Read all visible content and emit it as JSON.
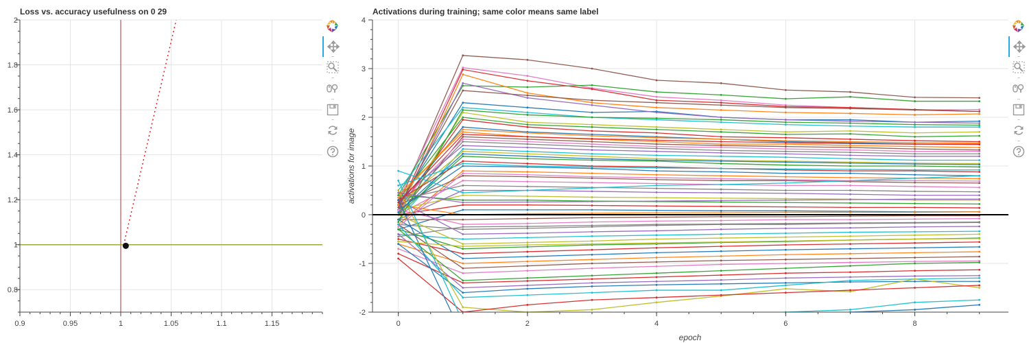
{
  "chart_data": [
    {
      "type": "line",
      "title": "Loss vs. accuracy usefulness on 0 29",
      "xlabel": "",
      "ylabel": "",
      "xlim": [
        0.9,
        1.2
      ],
      "ylim": [
        0.7,
        2.0
      ],
      "x_ticks": [
        0.9,
        0.95,
        1,
        1.05,
        1.1,
        1.15
      ],
      "x_tick_labels": [
        "0.9",
        "0.95",
        "1",
        "1.05",
        "1.1",
        "1.15"
      ],
      "y_ticks": [
        0.8,
        1,
        1.2,
        1.4,
        1.6,
        1.8,
        2
      ],
      "y_tick_labels": [
        "0.8",
        "1",
        "1.2",
        "1.4",
        "1.6",
        "1.8",
        "2"
      ],
      "grid": true,
      "series": [
        {
          "kind": "vline",
          "x": 1.0,
          "color": "#c0504d"
        },
        {
          "kind": "hline",
          "y": 1.0,
          "color": "#9aaa3c"
        },
        {
          "kind": "dotted",
          "x": [
            1.003,
            1.055
          ],
          "y": [
            1.0,
            2.0
          ],
          "color": "#e31a1c"
        },
        {
          "kind": "point",
          "x": 1.005,
          "y": 0.995,
          "color": "#111111"
        }
      ]
    },
    {
      "type": "line",
      "title": "Activations during training; same color means same label",
      "xlabel": "epoch",
      "ylabel": "activations for image",
      "xlim": [
        -0.4,
        9.45
      ],
      "ylim": [
        -2.0,
        4.0
      ],
      "x_ticks": [
        0,
        2,
        4,
        6,
        8
      ],
      "x_tick_labels": [
        "0",
        "2",
        "4",
        "6",
        "8"
      ],
      "y_ticks": [
        -2,
        -1,
        0,
        1,
        2,
        3,
        4
      ],
      "y_tick_labels": [
        "-2",
        "-1",
        "0",
        "1",
        "2",
        "3",
        "4"
      ],
      "grid": true,
      "zero_line": {
        "y": 0,
        "color": "#000000"
      },
      "epochs": [
        0,
        1,
        2,
        3,
        4,
        5,
        6,
        7,
        8,
        9
      ],
      "series_note": "",
      "series": [
        {
          "color": "#8c564b",
          "values": [
            0.2,
            3.27,
            3.18,
            3.0,
            2.76,
            2.7,
            2.56,
            2.52,
            2.41,
            2.4
          ]
        },
        {
          "color": "#e377c2",
          "values": [
            0.3,
            3.02,
            2.85,
            2.6,
            2.42,
            2.35,
            2.25,
            2.2,
            2.15,
            2.16
          ]
        },
        {
          "color": "#d62728",
          "values": [
            0.1,
            2.98,
            2.75,
            2.58,
            2.35,
            2.3,
            2.22,
            2.2,
            2.16,
            2.12
          ]
        },
        {
          "color": "#2ca02c",
          "values": [
            0.4,
            2.65,
            2.62,
            2.66,
            2.52,
            2.46,
            2.38,
            2.42,
            2.33,
            2.33
          ]
        },
        {
          "color": "#ff7f0e",
          "values": [
            0.0,
            2.88,
            2.5,
            2.3,
            2.2,
            2.15,
            2.1,
            2.08,
            2.05,
            2.07
          ]
        },
        {
          "color": "#1f77b4",
          "values": [
            0.2,
            2.3,
            2.2,
            2.1,
            2.12,
            2.0,
            1.95,
            1.95,
            1.9,
            1.92
          ]
        },
        {
          "color": "#9467bd",
          "values": [
            0.1,
            2.7,
            2.4,
            2.25,
            2.1,
            2.0,
            1.95,
            1.92,
            1.9,
            1.88
          ]
        },
        {
          "color": "#17becf",
          "values": [
            0.5,
            2.2,
            2.1,
            2.0,
            1.95,
            1.9,
            1.85,
            1.82,
            1.8,
            1.8
          ]
        },
        {
          "color": "#bcbd22",
          "values": [
            0.0,
            2.1,
            1.9,
            1.85,
            1.8,
            1.75,
            1.7,
            1.72,
            1.68,
            1.7
          ]
        },
        {
          "color": "#2ca02c",
          "values": [
            0.3,
            2.0,
            1.85,
            1.8,
            1.75,
            1.7,
            1.65,
            1.66,
            1.6,
            1.62
          ]
        },
        {
          "color": "#d62728",
          "values": [
            0.1,
            1.95,
            1.8,
            1.72,
            1.68,
            1.6,
            1.58,
            1.55,
            1.52,
            1.5
          ]
        },
        {
          "color": "#1f77b4",
          "values": [
            0.2,
            1.8,
            1.7,
            1.65,
            1.6,
            1.55,
            1.5,
            1.48,
            1.45,
            1.45
          ]
        },
        {
          "color": "#ff7f0e",
          "values": [
            0.4,
            1.7,
            1.6,
            1.55,
            1.5,
            1.45,
            1.45,
            1.42,
            1.4,
            1.38
          ]
        },
        {
          "color": "#8c564b",
          "values": [
            0.0,
            1.6,
            1.55,
            1.5,
            1.45,
            1.42,
            1.4,
            1.38,
            1.35,
            1.33
          ]
        },
        {
          "color": "#e377c2",
          "values": [
            0.2,
            1.55,
            1.5,
            1.45,
            1.4,
            1.38,
            1.35,
            1.33,
            1.3,
            1.3
          ]
        },
        {
          "color": "#7f7f7f",
          "values": [
            0.1,
            1.5,
            1.45,
            1.4,
            1.36,
            1.32,
            1.3,
            1.28,
            1.25,
            1.25
          ]
        },
        {
          "color": "#9467bd",
          "values": [
            0.3,
            1.42,
            1.38,
            1.33,
            1.3,
            1.27,
            1.25,
            1.22,
            1.2,
            1.2
          ]
        },
        {
          "color": "#17becf",
          "values": [
            -0.1,
            1.35,
            1.3,
            1.25,
            1.22,
            1.2,
            1.18,
            1.15,
            1.12,
            1.12
          ]
        },
        {
          "color": "#bcbd22",
          "values": [
            0.2,
            1.3,
            1.25,
            1.2,
            1.15,
            1.12,
            1.1,
            1.08,
            1.06,
            1.05
          ]
        },
        {
          "color": "#2ca02c",
          "values": [
            0.0,
            1.2,
            1.15,
            1.12,
            1.1,
            1.05,
            1.02,
            1.0,
            1.0,
            0.98
          ]
        },
        {
          "color": "#d62728",
          "values": [
            0.3,
            1.1,
            1.05,
            1.0,
            0.98,
            0.95,
            0.92,
            0.9,
            0.9,
            0.88
          ]
        },
        {
          "color": "#1f77b4",
          "values": [
            0.1,
            1.0,
            0.98,
            0.95,
            0.9,
            0.88,
            0.85,
            0.85,
            0.82,
            0.8
          ]
        },
        {
          "color": "#ff7f0e",
          "values": [
            -0.2,
            0.9,
            0.88,
            0.85,
            0.82,
            0.8,
            0.78,
            0.76,
            0.75,
            0.74
          ]
        },
        {
          "color": "#8c564b",
          "values": [
            0.2,
            0.8,
            0.78,
            0.75,
            0.72,
            0.7,
            0.7,
            0.68,
            0.66,
            0.65
          ]
        },
        {
          "color": "#e377c2",
          "values": [
            0.0,
            0.7,
            0.68,
            0.66,
            0.64,
            0.62,
            0.6,
            0.6,
            0.58,
            0.56
          ]
        },
        {
          "color": "#7f7f7f",
          "values": [
            0.3,
            0.6,
            0.58,
            0.56,
            0.54,
            0.52,
            0.5,
            0.5,
            0.48,
            0.47
          ]
        },
        {
          "color": "#9467bd",
          "values": [
            -0.1,
            0.5,
            0.5,
            0.48,
            0.46,
            0.45,
            0.44,
            0.42,
            0.4,
            0.4
          ]
        },
        {
          "color": "#17becf",
          "values": [
            0.9,
            0.45,
            0.5,
            0.55,
            0.6,
            0.62,
            0.65,
            0.7,
            0.75,
            0.8
          ]
        },
        {
          "color": "#bcbd22",
          "values": [
            0.1,
            0.4,
            0.38,
            0.36,
            0.35,
            0.34,
            0.33,
            0.32,
            0.3,
            0.3
          ]
        },
        {
          "color": "#2ca02c",
          "values": [
            0.4,
            0.3,
            0.3,
            0.28,
            0.27,
            0.26,
            0.25,
            0.24,
            0.23,
            0.22
          ]
        },
        {
          "color": "#d62728",
          "values": [
            0.0,
            0.2,
            0.2,
            0.19,
            0.18,
            0.17,
            0.16,
            0.15,
            0.15,
            0.14
          ]
        },
        {
          "color": "#1f77b4",
          "values": [
            -0.3,
            0.1,
            0.1,
            0.1,
            0.09,
            0.08,
            0.08,
            0.07,
            0.06,
            0.06
          ]
        },
        {
          "color": "#ff7f0e",
          "values": [
            0.2,
            0.0,
            0.02,
            0.03,
            0.04,
            0.04,
            0.05,
            0.05,
            0.05,
            0.06
          ]
        },
        {
          "color": "#8c564b",
          "values": [
            -0.1,
            -0.1,
            -0.08,
            -0.06,
            -0.05,
            -0.04,
            -0.04,
            -0.03,
            -0.02,
            -0.02
          ]
        },
        {
          "color": "#e377c2",
          "values": [
            0.1,
            -0.2,
            -0.18,
            -0.15,
            -0.13,
            -0.12,
            -0.1,
            -0.1,
            -0.09,
            -0.08
          ]
        },
        {
          "color": "#7f7f7f",
          "values": [
            -0.2,
            -0.3,
            -0.28,
            -0.25,
            -0.22,
            -0.2,
            -0.2,
            -0.18,
            -0.17,
            -0.16
          ]
        },
        {
          "color": "#9467bd",
          "values": [
            0.3,
            -0.4,
            -0.38,
            -0.35,
            -0.33,
            -0.3,
            -0.28,
            -0.27,
            -0.25,
            -0.24
          ]
        },
        {
          "color": "#17becf",
          "values": [
            -0.4,
            -0.5,
            -0.47,
            -0.44,
            -0.42,
            -0.4,
            -0.38,
            -0.36,
            -0.35,
            -0.34
          ]
        },
        {
          "color": "#bcbd22",
          "values": [
            0.0,
            -0.6,
            -0.57,
            -0.54,
            -0.5,
            -0.48,
            -0.46,
            -0.44,
            -0.42,
            -0.4
          ]
        },
        {
          "color": "#2ca02c",
          "values": [
            -0.3,
            -0.7,
            -0.66,
            -0.62,
            -0.6,
            -0.57,
            -0.55,
            -0.52,
            -0.5,
            -0.48
          ]
        },
        {
          "color": "#d62728",
          "values": [
            -0.5,
            -0.8,
            -0.76,
            -0.72,
            -0.68,
            -0.65,
            -0.62,
            -0.6,
            -0.58,
            -0.56
          ]
        },
        {
          "color": "#1f77b4",
          "values": [
            -0.1,
            -0.9,
            -0.86,
            -0.82,
            -0.78,
            -0.75,
            -0.72,
            -0.7,
            -0.68,
            -0.66
          ]
        },
        {
          "color": "#ff7f0e",
          "values": [
            -0.6,
            -1.0,
            -0.96,
            -0.92,
            -0.88,
            -0.85,
            -0.82,
            -0.8,
            -0.78,
            -0.76
          ]
        },
        {
          "color": "#8c564b",
          "values": [
            -0.2,
            -1.1,
            -1.05,
            -1.0,
            -0.97,
            -0.94,
            -0.92,
            -0.9,
            -0.88,
            -0.86
          ]
        },
        {
          "color": "#e377c2",
          "values": [
            -0.7,
            -1.2,
            -1.15,
            -1.1,
            -1.06,
            -1.02,
            -1.0,
            -0.98,
            -0.96,
            -0.95
          ]
        },
        {
          "color": "#2ca02c",
          "values": [
            -0.3,
            -1.35,
            -1.3,
            -1.25,
            -1.2,
            -1.15,
            -1.1,
            -1.05,
            -1.0,
            -0.98
          ]
        },
        {
          "color": "#d62728",
          "values": [
            -0.8,
            -1.4,
            -1.36,
            -1.32,
            -1.28,
            -1.24,
            -1.2,
            -1.18,
            -1.15,
            -1.13
          ]
        },
        {
          "color": "#9467bd",
          "values": [
            -0.4,
            -1.5,
            -1.45,
            -1.4,
            -1.37,
            -1.34,
            -1.3,
            -1.28,
            -1.26,
            -1.25
          ]
        },
        {
          "color": "#1f77b4",
          "values": [
            -0.6,
            -1.6,
            -1.52,
            -1.47,
            -1.44,
            -1.42,
            -1.4,
            -1.38,
            -1.37,
            -1.37
          ]
        },
        {
          "color": "#17becf",
          "values": [
            -0.2,
            -1.7,
            -1.65,
            -1.6,
            -1.55,
            -1.55,
            -1.45,
            -1.35,
            -1.32,
            -1.3
          ]
        },
        {
          "color": "#bcbd22",
          "values": [
            0.5,
            -1.9,
            -2.0,
            -1.95,
            -1.8,
            -1.67,
            -1.52,
            -1.58,
            -1.32,
            -1.5
          ]
        },
        {
          "color": "#d62728",
          "values": [
            -0.9,
            -2.0,
            -1.85,
            -1.75,
            -1.7,
            -1.65,
            -1.6,
            -1.55,
            -1.5,
            -1.45
          ]
        },
        {
          "color": "#17becf",
          "values": [
            0.7,
            -2.2,
            -2.15,
            -2.1,
            -2.05,
            -2.05,
            -2.0,
            -1.95,
            -1.8,
            -1.75
          ]
        },
        {
          "color": "#1f77b4",
          "values": [
            0.3,
            -2.5,
            -2.3,
            -2.2,
            -2.15,
            -2.1,
            -2.05,
            -2.0,
            -1.95,
            -1.85
          ]
        },
        {
          "color": "#8c564b",
          "values": [
            0.15,
            2.55,
            2.45,
            2.35,
            2.3,
            2.25,
            2.2,
            2.18,
            2.15,
            2.12
          ]
        },
        {
          "color": "#2ca02c",
          "values": [
            -0.15,
            2.15,
            2.05,
            2.0,
            1.98,
            1.95,
            1.9,
            1.88,
            1.85,
            1.84
          ]
        },
        {
          "color": "#ff7f0e",
          "values": [
            0.35,
            1.75,
            1.68,
            1.62,
            1.58,
            1.55,
            1.52,
            1.5,
            1.48,
            1.47
          ]
        },
        {
          "color": "#1f77b4",
          "values": [
            0.05,
            1.25,
            1.2,
            1.15,
            1.12,
            1.1,
            1.08,
            1.06,
            1.04,
            1.03
          ]
        },
        {
          "color": "#e377c2",
          "values": [
            -0.25,
            0.85,
            0.82,
            0.78,
            0.76,
            0.74,
            0.72,
            0.7,
            0.7,
            0.69
          ]
        },
        {
          "color": "#9467bd",
          "values": [
            0.45,
            0.25,
            0.26,
            0.27,
            0.28,
            0.29,
            0.3,
            0.31,
            0.32,
            0.32
          ]
        },
        {
          "color": "#7f7f7f",
          "values": [
            -0.45,
            -0.25,
            -0.24,
            -0.22,
            -0.2,
            -0.19,
            -0.18,
            -0.17,
            -0.16,
            -0.15
          ]
        },
        {
          "color": "#bcbd22",
          "values": [
            -0.55,
            -0.65,
            -0.62,
            -0.6,
            -0.58,
            -0.56,
            -0.54,
            -0.52,
            -0.5,
            -0.49
          ]
        },
        {
          "color": "#d62728",
          "values": [
            0.25,
            1.65,
            1.6,
            1.56,
            1.53,
            1.5,
            1.48,
            1.46,
            1.45,
            1.44
          ]
        },
        {
          "color": "#17becf",
          "values": [
            0.6,
            1.05,
            1.0,
            0.98,
            0.96,
            0.95,
            0.94,
            0.93,
            0.92,
            0.92
          ]
        }
      ]
    }
  ],
  "toolbars": {
    "left": [
      "bokeh-logo-icon",
      "pan-icon",
      "box-zoom-icon",
      "wheel-zoom-icon",
      "save-icon",
      "reset-icon",
      "help-icon"
    ],
    "right": [
      "bokeh-logo-icon",
      "pan-icon",
      "box-zoom-icon",
      "wheel-zoom-icon",
      "save-icon",
      "reset-icon",
      "help-icon"
    ],
    "active_color": "#26aae1"
  }
}
